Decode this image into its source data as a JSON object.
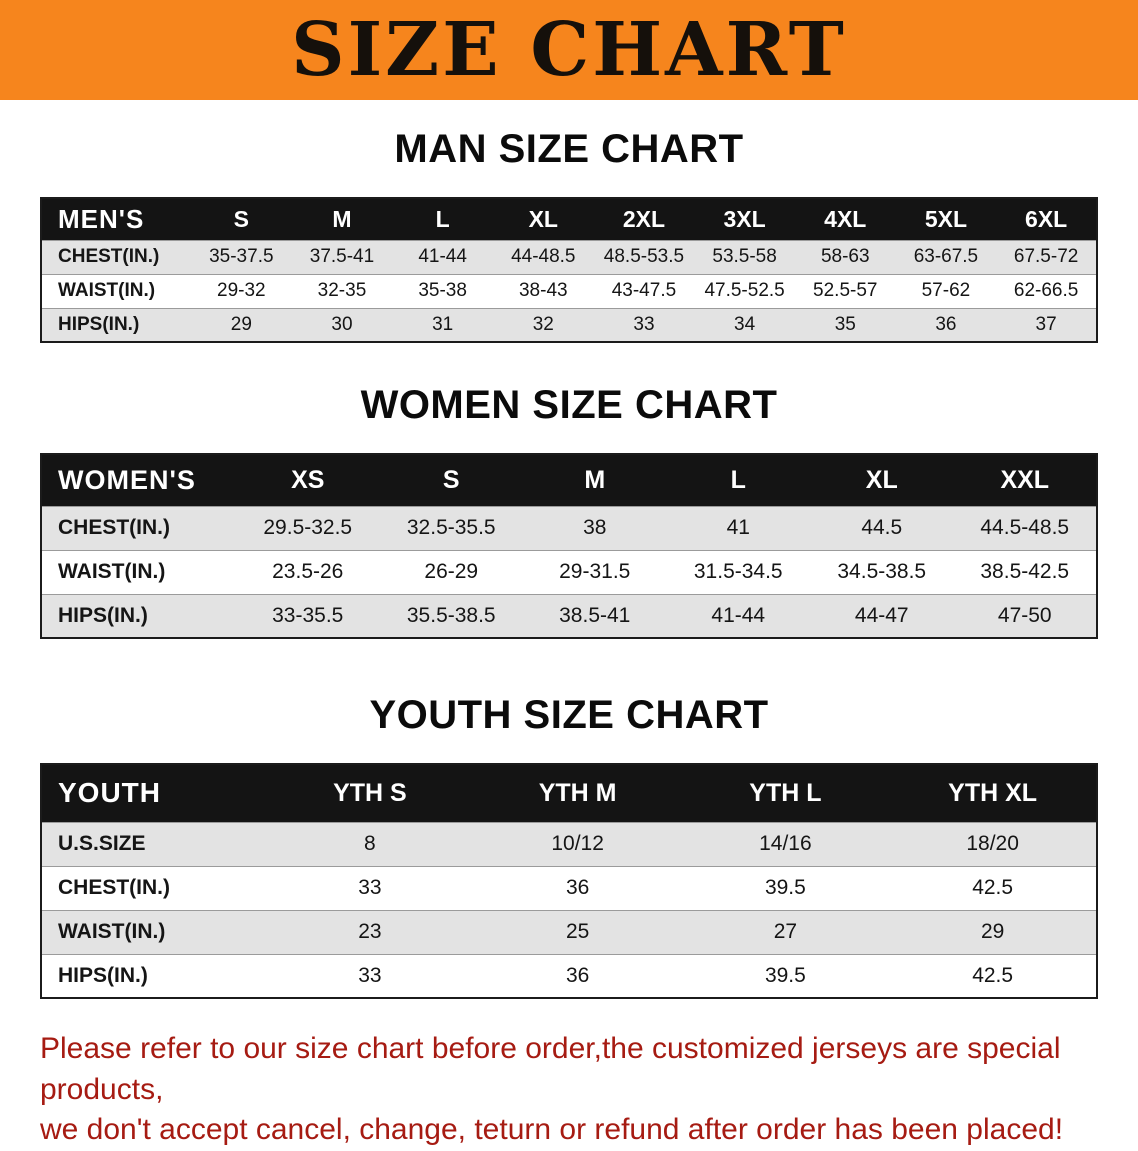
{
  "banner": {
    "title": "SIZE CHART"
  },
  "colors": {
    "banner_bg": "#f6851d",
    "table_header_bg": "#141414",
    "row_stripe": "#e3e3e3",
    "footer_text": "#a61b12"
  },
  "chart_data": [
    {
      "type": "table",
      "title": "MAN SIZE CHART",
      "columns": [
        "MEN'S",
        "S",
        "M",
        "L",
        "XL",
        "2XL",
        "3XL",
        "4XL",
        "5XL",
        "6XL"
      ],
      "rows": [
        [
          "CHEST(IN.)",
          "35-37.5",
          "37.5-41",
          "41-44",
          "44-48.5",
          "48.5-53.5",
          "53.5-58",
          "58-63",
          "63-67.5",
          "67.5-72"
        ],
        [
          "WAIST(IN.)",
          "29-32",
          "32-35",
          "35-38",
          "38-43",
          "43-47.5",
          "47.5-52.5",
          "52.5-57",
          "57-62",
          "62-66.5"
        ],
        [
          "HIPS(IN.)",
          "29",
          "30",
          "31",
          "32",
          "33",
          "34",
          "35",
          "36",
          "37"
        ]
      ]
    },
    {
      "type": "table",
      "title": "WOMEN SIZE CHART",
      "columns": [
        "WOMEN'S",
        "XS",
        "S",
        "M",
        "L",
        "XL",
        "XXL"
      ],
      "rows": [
        [
          "CHEST(IN.)",
          "29.5-32.5",
          "32.5-35.5",
          "38",
          "41",
          "44.5",
          "44.5-48.5"
        ],
        [
          "WAIST(IN.)",
          "23.5-26",
          "26-29",
          "29-31.5",
          "31.5-34.5",
          "34.5-38.5",
          "38.5-42.5"
        ],
        [
          "HIPS(IN.)",
          "33-35.5",
          "35.5-38.5",
          "38.5-41",
          "41-44",
          "44-47",
          "47-50"
        ]
      ]
    },
    {
      "type": "table",
      "title": "YOUTH SIZE CHART",
      "columns": [
        "YOUTH",
        "YTH S",
        "YTH M",
        "YTH L",
        "YTH XL"
      ],
      "rows": [
        [
          "U.S.SIZE",
          "8",
          "10/12",
          "14/16",
          "18/20"
        ],
        [
          "CHEST(IN.)",
          "33",
          "36",
          "39.5",
          "42.5"
        ],
        [
          "WAIST(IN.)",
          "23",
          "25",
          "27",
          "29"
        ],
        [
          "HIPS(IN.)",
          "33",
          "36",
          "39.5",
          "42.5"
        ]
      ]
    }
  ],
  "footer": {
    "lines": [
      "Please refer to our size chart before order,the customized jerseys are special products,",
      "we don't accept cancel, change, teturn or refund after order has been placed!"
    ]
  }
}
